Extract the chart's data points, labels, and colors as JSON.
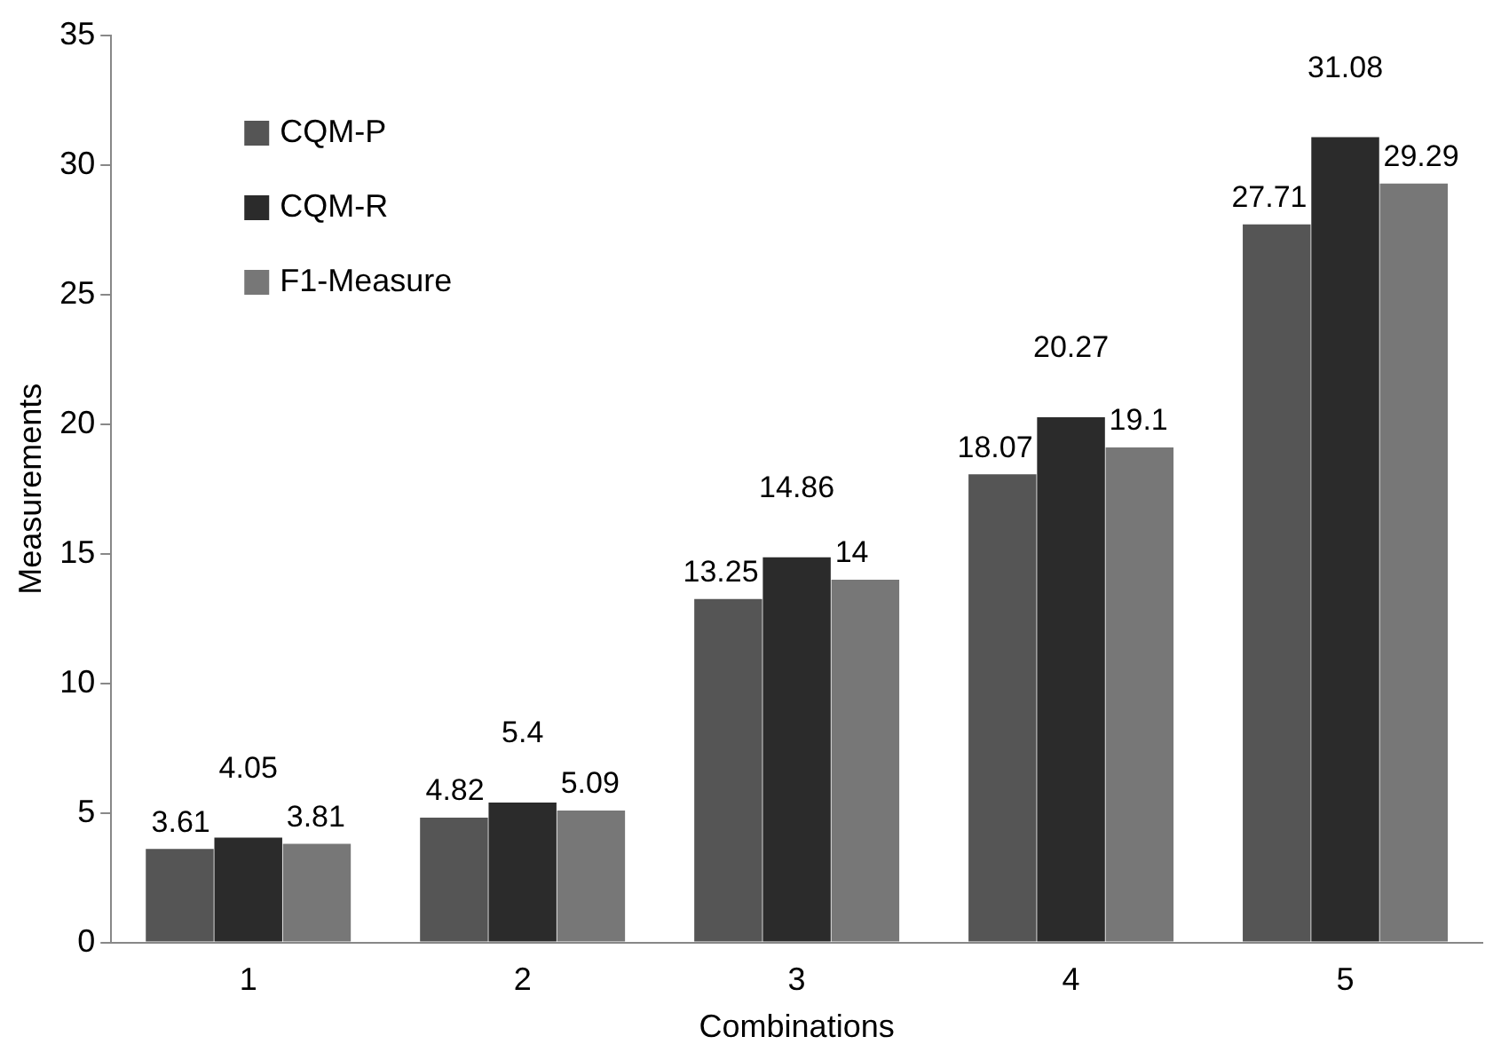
{
  "chart_data": {
    "type": "bar",
    "xlabel": "Combinations",
    "ylabel": "Measurements",
    "categories": [
      "1",
      "2",
      "3",
      "4",
      "5"
    ],
    "series": [
      {
        "name": "CQM-P",
        "color": "#555555",
        "values": [
          3.61,
          4.82,
          13.25,
          18.07,
          27.71
        ]
      },
      {
        "name": "CQM-R",
        "color": "#2b2b2b",
        "values": [
          4.05,
          5.4,
          14.86,
          20.27,
          31.08
        ]
      },
      {
        "name": "F1-Measure",
        "color": "#777777",
        "values": [
          3.81,
          5.09,
          14,
          19.1,
          29.29
        ]
      }
    ],
    "ylim": [
      0,
      35
    ],
    "yticks": [
      0,
      5,
      10,
      15,
      20,
      25,
      30,
      35
    ],
    "grid": false,
    "legend": "top left",
    "data_labels": true
  }
}
